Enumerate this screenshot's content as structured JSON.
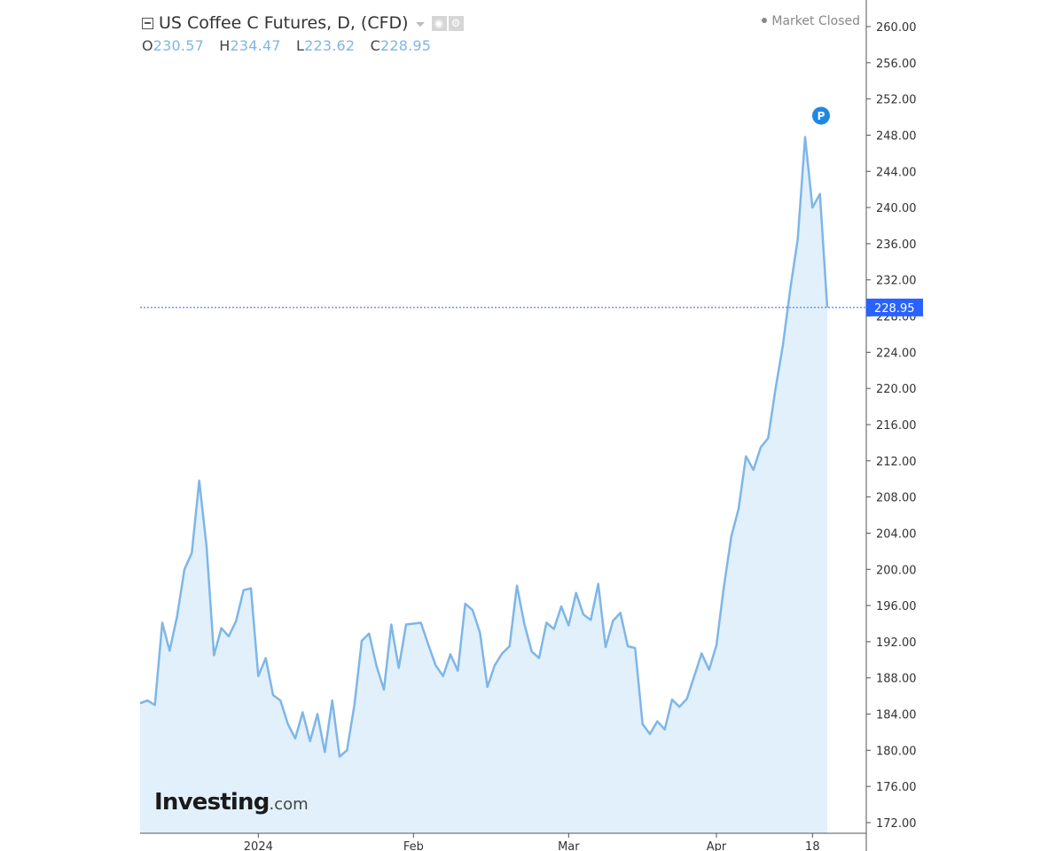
{
  "header": {
    "title": "US Coffee C Futures, D, (CFD)",
    "ohlc": [
      {
        "key": "O",
        "value": "230.57"
      },
      {
        "key": "H",
        "value": "234.47"
      },
      {
        "key": "L",
        "value": "223.62"
      },
      {
        "key": "C",
        "value": "228.95"
      }
    ],
    "status": "Market Closed"
  },
  "logo": {
    "main": "Investing",
    "suffix": ".com"
  },
  "last_price_label": "228.95",
  "marker_label": "P",
  "colors": {
    "line": "#7eb6e8",
    "fill": "#e1f0fa",
    "price_line": "#2962ff",
    "price_tag": "#2962ff",
    "marker": "#1e88e5",
    "axis": "#555555"
  },
  "chart_data": {
    "type": "area",
    "title": "US Coffee C Futures, D, (CFD)",
    "ylim": [
      170,
      262
    ],
    "yticks": [
      172,
      176,
      180,
      184,
      188,
      192,
      196,
      200,
      204,
      208,
      212,
      216,
      220,
      224,
      228,
      232,
      236,
      240,
      244,
      248,
      252,
      256,
      260
    ],
    "ytick_labels": [
      "172.00",
      "176.00",
      "180.00",
      "184.00",
      "188.00",
      "192.00",
      "196.00",
      "200.00",
      "204.00",
      "208.00",
      "212.00",
      "216.00",
      "220.00",
      "224.00",
      "228.00",
      "232.00",
      "236.00",
      "240.00",
      "244.00",
      "248.00",
      "252.00",
      "256.00",
      "260.00"
    ],
    "xtick_labels": [
      {
        "label": "2024",
        "index": 16
      },
      {
        "label": "Feb",
        "index": 37
      },
      {
        "label": "Mar",
        "index": 58
      },
      {
        "label": "Apr",
        "index": 78
      },
      {
        "label": "18",
        "index": 91
      }
    ],
    "last_value": 228.95,
    "values": [
      185.2,
      185.5,
      185.0,
      194.1,
      191.0,
      194.8,
      200.0,
      201.8,
      209.8,
      202.5,
      190.5,
      193.5,
      192.6,
      194.3,
      197.7,
      197.9,
      188.2,
      190.2,
      186.1,
      185.5,
      182.9,
      181.3,
      184.2,
      181.0,
      184.0,
      179.8,
      185.5,
      179.3,
      180.0,
      185.0,
      192.1,
      192.9,
      189.3,
      186.7,
      193.9,
      189.1,
      193.9,
      194.0,
      194.1,
      191.7,
      189.4,
      188.2,
      190.6,
      188.8,
      196.2,
      195.5,
      193.0,
      187.0,
      189.4,
      190.7,
      191.5,
      198.2,
      194.0,
      190.9,
      190.2,
      194.1,
      193.4,
      195.9,
      193.8,
      197.4,
      195.0,
      194.4,
      198.4,
      191.4,
      194.3,
      195.2,
      191.5,
      191.3,
      182.9,
      181.8,
      183.2,
      182.3,
      185.6,
      184.8,
      185.7,
      188.2,
      190.7,
      188.9,
      191.6,
      198.0,
      203.6,
      206.7,
      212.5,
      211.0,
      213.5,
      214.5,
      220.0,
      224.8,
      231.0,
      236.5,
      247.8,
      240.0,
      241.5,
      228.95
    ]
  }
}
